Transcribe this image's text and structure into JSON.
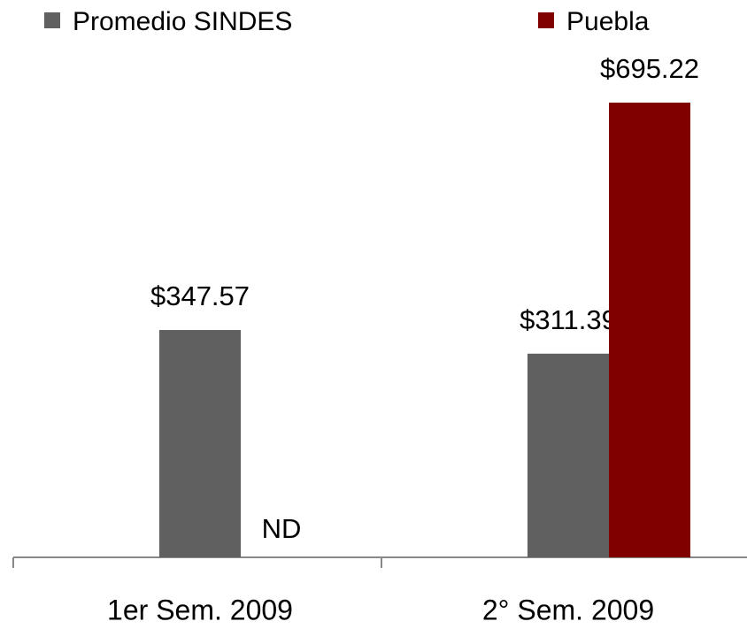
{
  "chart_data": {
    "type": "bar",
    "categories": [
      "1er Sem. 2009",
      "2° Sem. 2009"
    ],
    "series": [
      {
        "name": "Promedio SINDES",
        "color": "#606060",
        "values": [
          347.57,
          311.39
        ],
        "value_labels": [
          "$347.57",
          "$311.39"
        ]
      },
      {
        "name": "Puebla",
        "color": "#800000",
        "values": [
          null,
          695.22
        ],
        "value_labels": [
          "ND",
          "$695.22"
        ]
      }
    ]
  }
}
